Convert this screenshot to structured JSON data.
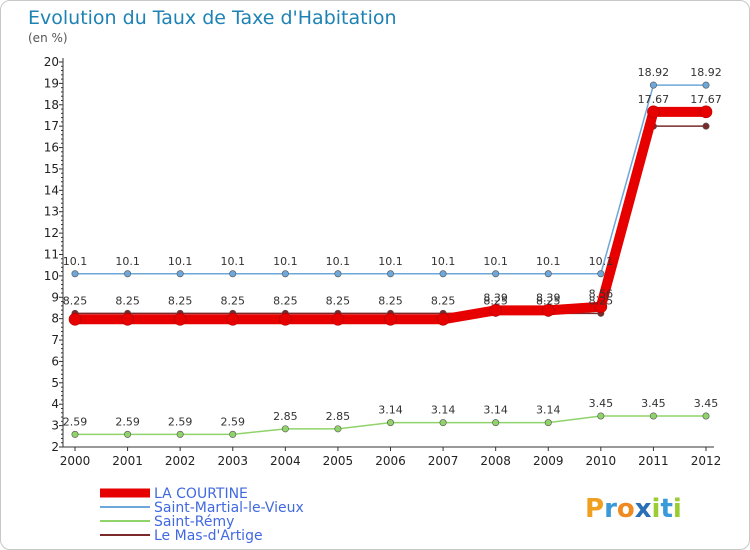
{
  "chart_data": {
    "type": "line",
    "title": "Evolution du Taux de Taxe d'Habitation",
    "subtitle": "(en %)",
    "xlabel": "",
    "ylabel": "",
    "ylim": [
      2,
      20
    ],
    "yticks": [
      "2",
      "3",
      "4",
      "5",
      "6",
      "7",
      "8",
      "9",
      "10",
      "11",
      "12",
      "13",
      "14",
      "15",
      "16",
      "17",
      "18",
      "19",
      "20"
    ],
    "categories": [
      "2000",
      "2001",
      "2002",
      "2003",
      "2004",
      "2005",
      "2006",
      "2007",
      "2008",
      "2009",
      "2010",
      "2011",
      "2012"
    ],
    "grid": false,
    "legend_position": "bottom-left",
    "series": [
      {
        "name": "LA COURTINE",
        "color": "#e60000",
        "values": [
          7.97,
          7.97,
          7.97,
          7.97,
          7.97,
          7.97,
          7.97,
          7.97,
          8.39,
          8.39,
          8.56,
          17.67,
          17.67
        ],
        "labels": [
          "",
          "",
          "",
          "",
          "",
          "",
          "",
          "",
          "8.39",
          "8.39",
          "8.56",
          "17.67",
          "17.67"
        ]
      },
      {
        "name": "Saint-Martial-le-Vieux",
        "color": "#6ea7d9",
        "values": [
          10.1,
          10.1,
          10.1,
          10.1,
          10.1,
          10.1,
          10.1,
          10.1,
          10.1,
          10.1,
          10.1,
          18.92,
          18.92
        ],
        "labels": [
          "10.1",
          "10.1",
          "10.1",
          "10.1",
          "10.1",
          "10.1",
          "10.1",
          "10.1",
          "10.1",
          "10.1",
          "10.1",
          "18.92",
          "18.92"
        ]
      },
      {
        "name": "Saint-Rémy",
        "color": "#8fd36a",
        "values": [
          2.59,
          2.59,
          2.59,
          2.59,
          2.85,
          2.85,
          3.14,
          3.14,
          3.14,
          3.14,
          3.45,
          3.45,
          3.45
        ],
        "labels": [
          "2.59",
          "2.59",
          "2.59",
          "2.59",
          "2.85",
          "2.85",
          "3.14",
          "3.14",
          "3.14",
          "3.14",
          "3.45",
          "3.45",
          "3.45"
        ]
      },
      {
        "name": "Le Mas-d'Artige",
        "color": "#7a2a2a",
        "values": [
          8.25,
          8.25,
          8.25,
          8.25,
          8.25,
          8.25,
          8.25,
          8.25,
          8.25,
          8.25,
          8.25,
          17.0,
          17.0
        ],
        "labels": [
          "8.25",
          "8.25",
          "8.25",
          "8.25",
          "8.25",
          "8.25",
          "8.25",
          "8.25",
          "8.25",
          "8.25",
          "8.25",
          "",
          ""
        ]
      }
    ],
    "logo": {
      "letters": [
        "P",
        "r",
        "o",
        "x",
        "i",
        "t",
        "i"
      ],
      "colors": [
        "#f0a020",
        "#3a9ad9",
        "#f08a20",
        "#2a6fb5",
        "#9acd32",
        "#3a9ad9",
        "#9acd32"
      ]
    }
  }
}
